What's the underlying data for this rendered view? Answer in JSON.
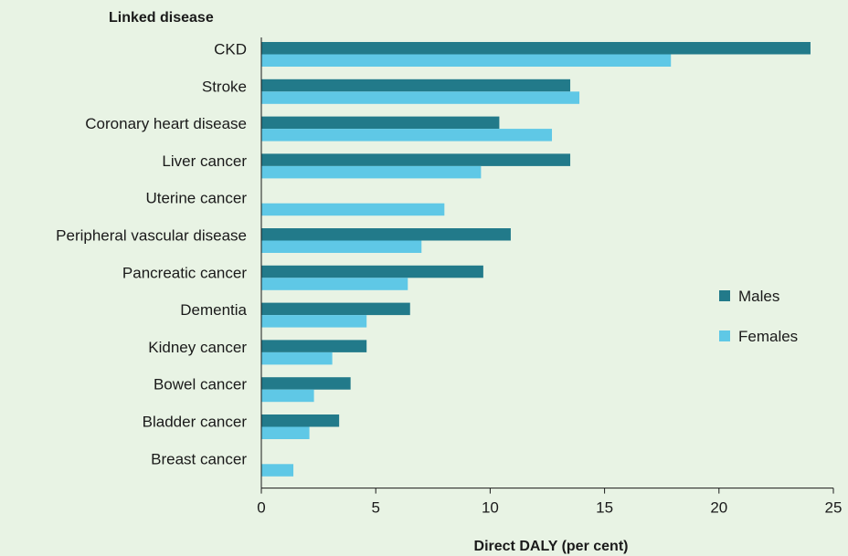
{
  "chart_data": {
    "type": "bar",
    "orientation": "horizontal",
    "title": "",
    "ylabel": "Linked disease",
    "xlabel": "Direct DALY (per cent)",
    "xlim": [
      0,
      25
    ],
    "xticks": [
      0,
      5,
      10,
      15,
      20,
      25
    ],
    "grid": false,
    "legend_position": "right",
    "categories": [
      "CKD",
      "Stroke",
      "Coronary heart disease",
      "Liver cancer",
      "Uterine cancer",
      "Peripheral vascular disease",
      "Pancreatic cancer",
      "Dementia",
      "Kidney cancer",
      "Bowel cancer",
      "Bladder cancer",
      "Breast cancer"
    ],
    "series": [
      {
        "name": "Males",
        "color": "#227a8a",
        "values": [
          24.0,
          13.5,
          10.4,
          13.5,
          null,
          10.9,
          9.7,
          6.5,
          4.6,
          3.9,
          3.4,
          null
        ]
      },
      {
        "name": "Females",
        "color": "#5fc8e6",
        "values": [
          17.9,
          13.9,
          12.7,
          9.6,
          8.0,
          7.0,
          6.4,
          4.6,
          3.1,
          2.3,
          2.1,
          1.4
        ]
      }
    ]
  }
}
